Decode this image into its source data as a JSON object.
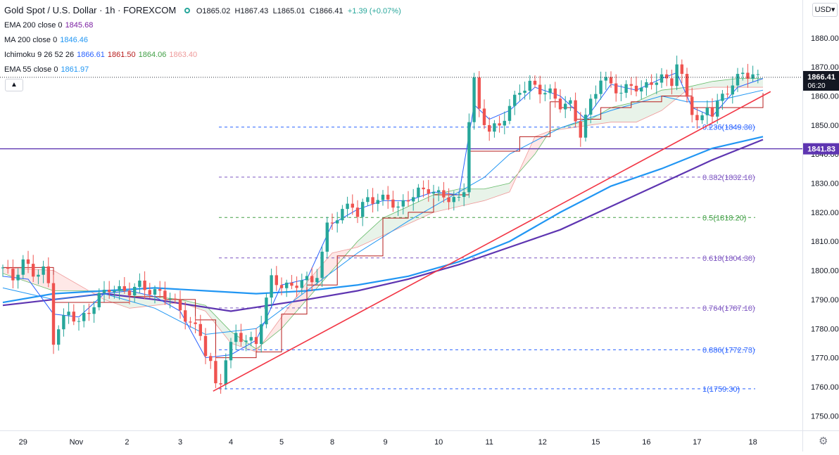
{
  "header": {
    "symbol": "Gold Spot / U.S. Dollar · 1h · FOREXCOM",
    "open": "O1865.02",
    "high": "H1867.43",
    "low": "L1865.01",
    "close": "C1866.41",
    "change": "+1.39 (+0.07%)"
  },
  "indicators": [
    {
      "name": "EMA 200 close 0",
      "values": [
        "1845.68"
      ],
      "colors": [
        "#7b1fa2"
      ]
    },
    {
      "name": "MA 200 close 0",
      "values": [
        "1846.46"
      ],
      "colors": [
        "#2196f3"
      ]
    },
    {
      "name": "Ichimoku 9 26 52 26",
      "values": [
        "1866.61",
        "1861.50",
        "1864.06",
        "1863.40"
      ],
      "colors": [
        "#2962ff",
        "#b71c1c",
        "#43a047",
        "#ef9a9a"
      ]
    },
    {
      "name": "EMA 55 close 0",
      "values": [
        "1861.97"
      ],
      "colors": [
        "#2196f3"
      ]
    }
  ],
  "currency": "USD",
  "collapse_icon": "chevron-up-icon",
  "settings_icon": "gear-icon",
  "colors": {
    "up": "#26a69a",
    "down": "#ef5350",
    "hline": "#5e35b1",
    "trend": "#f23645",
    "ema200": "#5e35b1",
    "ma200": "#2196f3",
    "ema55": "#2196f3",
    "tenkan": "#2962ff",
    "kijun": "#b71c1c",
    "fib_blue": "#2962ff",
    "fib_purple": "#7e57c2",
    "fib_green": "#43a047",
    "price_tag": "#131722"
  },
  "chart_data": {
    "type": "candlestick",
    "title": "Gold Spot / U.S. Dollar · 1h · FOREXCOM",
    "ylim": [
      1745,
      1893
    ],
    "y_ticks": [
      "1750.00",
      "1760.00",
      "1770.00",
      "1780.00",
      "1790.00",
      "1800.00",
      "1810.00",
      "1820.00",
      "1830.00",
      "1840.00",
      "1850.00",
      "1860.00",
      "1870.00",
      "1880.00"
    ],
    "x_ticks": [
      "29",
      "Nov",
      "2",
      "3",
      "4",
      "5",
      "8",
      "9",
      "10",
      "11",
      "12",
      "15",
      "16",
      "17",
      "18"
    ],
    "current_price": {
      "value": 1866.41,
      "label": "1866.41",
      "countdown": "06:20"
    },
    "horizontal_line": {
      "value": 1841.83,
      "label": "1841.83"
    },
    "fibonacci": [
      {
        "level": "0.236",
        "value": 1849.3,
        "label": "0.236(1849.30)"
      },
      {
        "level": "0.382",
        "value": 1832.1,
        "label": "0.382(1832.10)"
      },
      {
        "level": "0.5",
        "value": 1818.2,
        "label": "0.5(1818.20)"
      },
      {
        "level": "0.618",
        "value": 1804.3,
        "label": "0.618(1804.30)"
      },
      {
        "level": "0.764",
        "value": 1787.1,
        "label": "0.764(1787.10)"
      },
      {
        "level": "0.886",
        "value": 1772.73,
        "label": "0.886(1772.73)"
      },
      {
        "level": "1",
        "value": 1759.3,
        "label": "1(1759.30)"
      }
    ],
    "trendline": {
      "from": {
        "x": 41.5,
        "y": 1758.5
      },
      "to": {
        "x": 151.5,
        "y": 1861.5
      }
    },
    "price_path": [
      [
        0,
        1801
      ],
      [
        2,
        1797
      ],
      [
        4,
        1803
      ],
      [
        6,
        1799
      ],
      [
        8,
        1800
      ],
      [
        9,
        1795
      ],
      [
        10,
        1776
      ],
      [
        11,
        1780
      ],
      [
        13,
        1786
      ],
      [
        15,
        1782
      ],
      [
        17,
        1786
      ],
      [
        19,
        1791
      ],
      [
        21,
        1794
      ],
      [
        23,
        1793
      ],
      [
        25,
        1793
      ],
      [
        27,
        1795
      ],
      [
        29,
        1793
      ],
      [
        31,
        1792
      ],
      [
        33,
        1791
      ],
      [
        35,
        1786
      ],
      [
        37,
        1782
      ],
      [
        39,
        1778
      ],
      [
        40,
        1772
      ],
      [
        41,
        1768
      ],
      [
        42,
        1760
      ],
      [
        43,
        1762
      ],
      [
        44,
        1770
      ],
      [
        46,
        1778
      ],
      [
        48,
        1776
      ],
      [
        50,
        1775
      ],
      [
        51,
        1783
      ],
      [
        53,
        1797
      ],
      [
        55,
        1795
      ],
      [
        57,
        1794
      ],
      [
        59,
        1797
      ],
      [
        61,
        1796
      ],
      [
        62,
        1799
      ],
      [
        63,
        1806
      ],
      [
        64,
        1815
      ],
      [
        65,
        1817
      ],
      [
        67,
        1820
      ],
      [
        68,
        1822
      ],
      [
        69,
        1823
      ],
      [
        70,
        1819
      ],
      [
        72,
        1825
      ],
      [
        74,
        1824
      ],
      [
        76,
        1825
      ],
      [
        78,
        1821
      ],
      [
        80,
        1825
      ],
      [
        82,
        1827
      ],
      [
        84,
        1828
      ],
      [
        86,
        1826
      ],
      [
        88,
        1825
      ],
      [
        90,
        1824
      ],
      [
        91,
        1828
      ],
      [
        92,
        1852
      ],
      [
        93,
        1865
      ],
      [
        94,
        1855
      ],
      [
        96,
        1848
      ],
      [
        98,
        1850
      ],
      [
        100,
        1856
      ],
      [
        102,
        1862
      ],
      [
        104,
        1864
      ],
      [
        106,
        1862
      ],
      [
        108,
        1861
      ],
      [
        110,
        1857
      ],
      [
        112,
        1857
      ],
      [
        114,
        1847
      ],
      [
        116,
        1858
      ],
      [
        118,
        1866
      ],
      [
        120,
        1864
      ],
      [
        122,
        1861
      ],
      [
        124,
        1864
      ],
      [
        126,
        1862
      ],
      [
        128,
        1865
      ],
      [
        130,
        1866
      ],
      [
        132,
        1865
      ],
      [
        133,
        1871
      ],
      [
        134,
        1866
      ],
      [
        135,
        1860
      ],
      [
        136,
        1855
      ],
      [
        137,
        1851
      ],
      [
        138,
        1852
      ],
      [
        139,
        1857
      ],
      [
        140,
        1854
      ],
      [
        142,
        1860
      ],
      [
        144,
        1864
      ],
      [
        146,
        1868
      ],
      [
        148,
        1867
      ],
      [
        149,
        1866
      ]
    ],
    "ema200": [
      [
        0,
        1788
      ],
      [
        10,
        1790
      ],
      [
        20,
        1792
      ],
      [
        30,
        1790
      ],
      [
        45,
        1786
      ],
      [
        60,
        1790
      ],
      [
        70,
        1793
      ],
      [
        80,
        1797
      ],
      [
        90,
        1802
      ],
      [
        100,
        1808
      ],
      [
        110,
        1814
      ],
      [
        120,
        1822
      ],
      [
        130,
        1830
      ],
      [
        140,
        1838
      ],
      [
        150,
        1845
      ]
    ],
    "ma200": [
      [
        0,
        1789
      ],
      [
        10,
        1792
      ],
      [
        20,
        1793
      ],
      [
        30,
        1794
      ],
      [
        40,
        1793
      ],
      [
        50,
        1792
      ],
      [
        60,
        1793
      ],
      [
        70,
        1795
      ],
      [
        80,
        1798
      ],
      [
        90,
        1803
      ],
      [
        100,
        1810
      ],
      [
        110,
        1820
      ],
      [
        120,
        1829
      ],
      [
        130,
        1835
      ],
      [
        140,
        1842
      ],
      [
        150,
        1846
      ]
    ],
    "ema55": [
      [
        0,
        1794
      ],
      [
        10,
        1790
      ],
      [
        20,
        1792
      ],
      [
        30,
        1787
      ],
      [
        40,
        1778
      ],
      [
        50,
        1780
      ],
      [
        60,
        1793
      ],
      [
        70,
        1806
      ],
      [
        80,
        1817
      ],
      [
        90,
        1827
      ],
      [
        95,
        1832
      ],
      [
        100,
        1840
      ],
      [
        110,
        1849
      ],
      [
        120,
        1855
      ],
      [
        130,
        1860
      ],
      [
        135,
        1858
      ],
      [
        140,
        1858
      ],
      [
        150,
        1862
      ]
    ],
    "tenkan": [
      [
        0,
        1798
      ],
      [
        5,
        1797
      ],
      [
        10,
        1785
      ],
      [
        15,
        1784
      ],
      [
        20,
        1792
      ],
      [
        25,
        1793
      ],
      [
        30,
        1791
      ],
      [
        35,
        1786
      ],
      [
        40,
        1770
      ],
      [
        45,
        1771
      ],
      [
        50,
        1776
      ],
      [
        55,
        1795
      ],
      [
        60,
        1797
      ],
      [
        65,
        1816
      ],
      [
        70,
        1821
      ],
      [
        75,
        1824
      ],
      [
        80,
        1824
      ],
      [
        85,
        1827
      ],
      [
        90,
        1826
      ],
      [
        93,
        1857
      ],
      [
        96,
        1852
      ],
      [
        100,
        1855
      ],
      [
        105,
        1863
      ],
      [
        110,
        1860
      ],
      [
        115,
        1852
      ],
      [
        120,
        1864
      ],
      [
        125,
        1862
      ],
      [
        130,
        1866
      ],
      [
        133,
        1868
      ],
      [
        136,
        1856
      ],
      [
        140,
        1853
      ],
      [
        145,
        1863
      ],
      [
        150,
        1866
      ]
    ],
    "kijun": [
      [
        0,
        1801
      ],
      [
        8,
        1801
      ],
      [
        10,
        1789
      ],
      [
        20,
        1789
      ],
      [
        25,
        1791
      ],
      [
        32,
        1790
      ],
      [
        38,
        1783
      ],
      [
        42,
        1770
      ],
      [
        50,
        1772
      ],
      [
        55,
        1785
      ],
      [
        60,
        1795
      ],
      [
        66,
        1805
      ],
      [
        72,
        1805
      ],
      [
        75,
        1818
      ],
      [
        80,
        1820
      ],
      [
        85,
        1826
      ],
      [
        90,
        1826
      ],
      [
        92,
        1841
      ],
      [
        100,
        1841
      ],
      [
        102,
        1846
      ],
      [
        108,
        1858
      ],
      [
        110,
        1856
      ],
      [
        113,
        1852
      ],
      [
        118,
        1856
      ],
      [
        124,
        1858
      ],
      [
        130,
        1860
      ],
      [
        134,
        1860
      ],
      [
        136,
        1856
      ],
      [
        144,
        1856
      ],
      [
        150,
        1861
      ]
    ],
    "kumo": {
      "x": [
        0,
        10,
        20,
        25,
        30,
        35,
        40,
        45,
        50,
        55,
        60,
        65,
        70,
        75,
        80,
        85,
        90,
        95,
        100,
        105,
        108,
        112,
        116,
        120,
        125,
        130,
        135,
        140,
        145,
        150
      ],
      "span_a": [
        1799,
        1793,
        1793,
        1793,
        1791,
        1790,
        1788,
        1779,
        1773,
        1780,
        1790,
        1800,
        1810,
        1818,
        1822,
        1826,
        1828,
        1828,
        1830,
        1840,
        1848,
        1850,
        1852,
        1856,
        1858,
        1862,
        1863,
        1865,
        1866,
        1866
      ],
      "span_b": [
        1801,
        1800,
        1790,
        1787,
        1788,
        1789,
        1786,
        1775,
        1772,
        1784,
        1796,
        1806,
        1808,
        1812,
        1816,
        1820,
        1822,
        1824,
        1827,
        1846,
        1848,
        1849,
        1850,
        1851,
        1851,
        1855,
        1862,
        1863,
        1863,
        1863
      ]
    }
  }
}
